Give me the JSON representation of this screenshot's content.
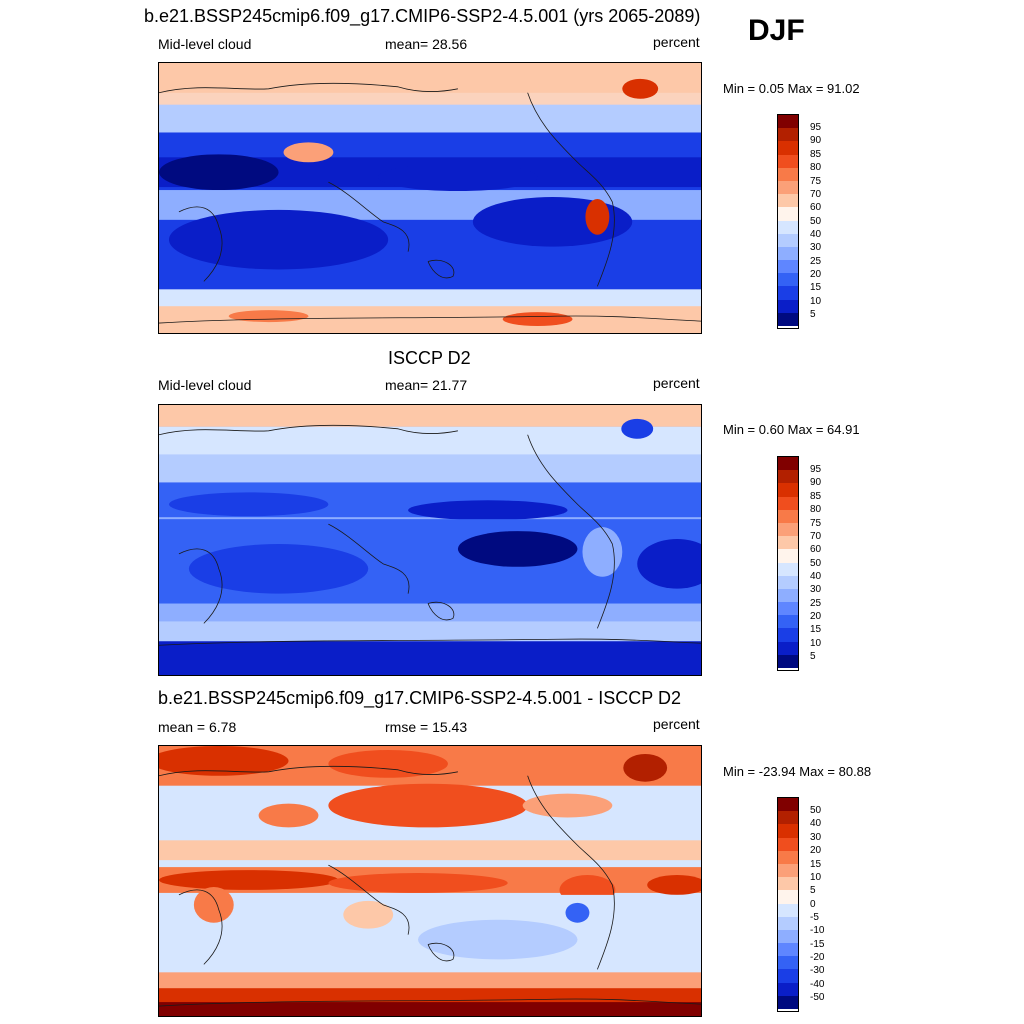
{
  "season": "DJF",
  "panels": [
    {
      "title": "b.e21.BSSP245cmip6.f09_g17.CMIP6-SSP2-4.5.001 (yrs 2065-2089)",
      "left_label": "Mid-level cloud",
      "center_label": "mean=  28.56",
      "right_label": "percent",
      "minmax": "Min =   0.05 Max =  91.02",
      "cbar_labels": [
        "95",
        "90",
        "85",
        "80",
        "75",
        "70",
        "60",
        "50",
        "40",
        "30",
        "25",
        "20",
        "15",
        "10",
        "5"
      ],
      "cbar_colors": [
        "#800000",
        "#b22000",
        "#d93000",
        "#f04e1e",
        "#f87a48",
        "#fba078",
        "#fdc8a8",
        "#fff4ec",
        "#d6e6ff",
        "#b4ccff",
        "#8eaeff",
        "#5f86ff",
        "#3462f5",
        "#1a3ee6",
        "#0a1ec8",
        "#000a80"
      ]
    },
    {
      "title": "ISCCP D2",
      "left_label": "Mid-level cloud",
      "center_label": "mean=  21.77",
      "right_label": "percent",
      "minmax": "Min =   0.60 Max =  64.91",
      "cbar_labels": [
        "95",
        "90",
        "85",
        "80",
        "75",
        "70",
        "60",
        "50",
        "40",
        "30",
        "25",
        "20",
        "15",
        "10",
        "5"
      ],
      "cbar_colors": [
        "#800000",
        "#b22000",
        "#d93000",
        "#f04e1e",
        "#f87a48",
        "#fba078",
        "#fdc8a8",
        "#fff4ec",
        "#d6e6ff",
        "#b4ccff",
        "#8eaeff",
        "#5f86ff",
        "#3462f5",
        "#1a3ee6",
        "#0a1ec8",
        "#000a80"
      ]
    },
    {
      "title": "b.e21.BSSP245cmip6.f09_g17.CMIP6-SSP2-4.5.001 - ISCCP D2",
      "left_label": "mean =   6.78",
      "center_label": "rmse =  15.43",
      "right_label": "percent",
      "minmax": "Min = -23.94 Max =  80.88",
      "cbar_labels": [
        "50",
        "40",
        "30",
        "20",
        "15",
        "10",
        "5",
        "0",
        "-5",
        "-10",
        "-15",
        "-20",
        "-30",
        "-40",
        "-50"
      ],
      "cbar_colors": [
        "#800000",
        "#b22000",
        "#d93000",
        "#f04e1e",
        "#f87a48",
        "#fba078",
        "#fdc8a8",
        "#fff4ec",
        "#d6e6ff",
        "#b4ccff",
        "#8eaeff",
        "#5f86ff",
        "#3462f5",
        "#1a3ee6",
        "#0a1ec8",
        "#000a80"
      ]
    }
  ]
}
